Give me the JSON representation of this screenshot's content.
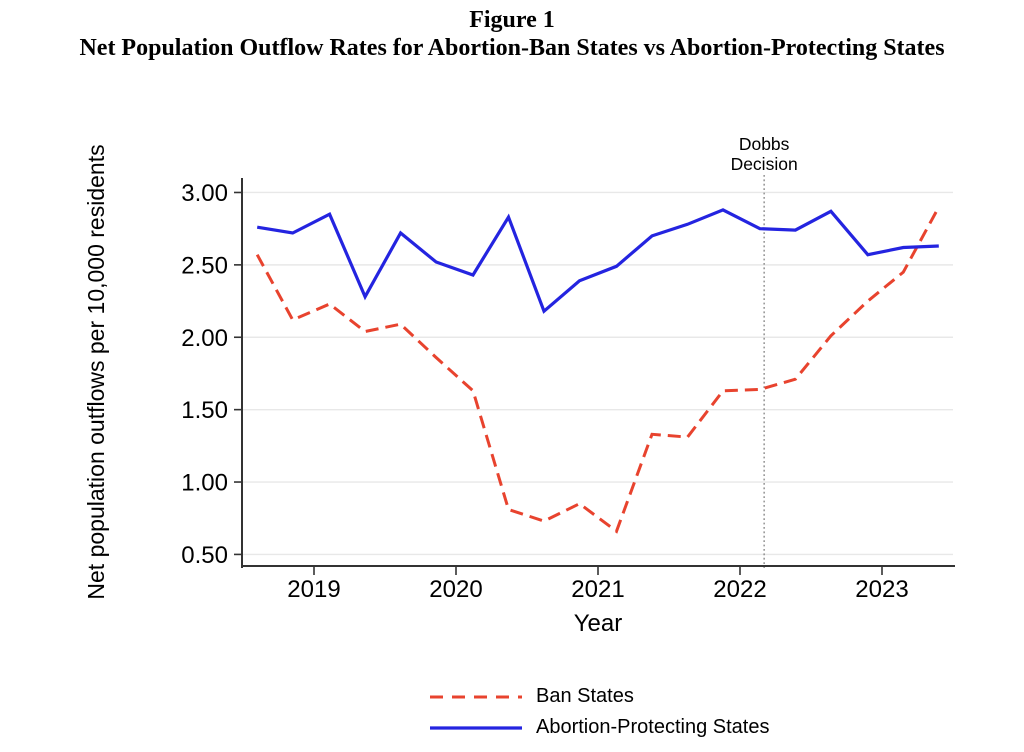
{
  "chart_data": {
    "type": "line",
    "title": "Figure 1",
    "subtitle": "Net Population Outflow Rates for Abortion-Ban States vs Abortion-Protecting States",
    "xlabel": "Year",
    "ylabel": "Net population outflows per 10,000 residents",
    "x": [
      2018.6,
      2018.85,
      2019.11,
      2019.36,
      2019.61,
      2019.86,
      2020.12,
      2020.37,
      2020.62,
      2020.87,
      2021.13,
      2021.38,
      2021.63,
      2021.88,
      2022.14,
      2022.39,
      2022.64,
      2022.9,
      2023.15,
      2023.4
    ],
    "series": [
      {
        "name": "Ban States",
        "style": "dashed",
        "color": "#e8432e",
        "values": [
          2.57,
          2.12,
          2.23,
          2.04,
          2.09,
          1.86,
          1.63,
          0.81,
          0.73,
          0.85,
          0.66,
          1.33,
          1.31,
          1.63,
          1.64,
          1.71,
          2.01,
          2.25,
          2.45,
          2.9
        ]
      },
      {
        "name": "Abortion-Protecting States",
        "style": "solid",
        "color": "#2424e0",
        "values": [
          2.76,
          2.72,
          2.85,
          2.28,
          2.72,
          2.52,
          2.43,
          2.83,
          2.18,
          2.39,
          2.49,
          2.7,
          2.78,
          2.88,
          2.75,
          2.74,
          2.87,
          2.57,
          2.62,
          2.63
        ]
      }
    ],
    "xlim": [
      2018.5,
      2023.5
    ],
    "ylim": [
      0.42,
      3.1
    ],
    "xticks": [
      2019,
      2020,
      2021,
      2022,
      2023
    ],
    "xtick_labels": [
      "2019",
      "2020",
      "2021",
      "2022",
      "2023"
    ],
    "yticks": [
      0.5,
      1.0,
      1.5,
      2.0,
      2.5,
      3.0
    ],
    "ytick_labels": [
      "0.50",
      "1.00",
      "1.50",
      "2.00",
      "2.50",
      "3.00"
    ],
    "grid": "horizontal",
    "legend_position": "bottom",
    "annotation": {
      "text": [
        "Dobbs",
        "Decision"
      ],
      "x": 2022.17,
      "style": "dotted-vertical-line",
      "line_color": "#8a8a8a"
    }
  }
}
